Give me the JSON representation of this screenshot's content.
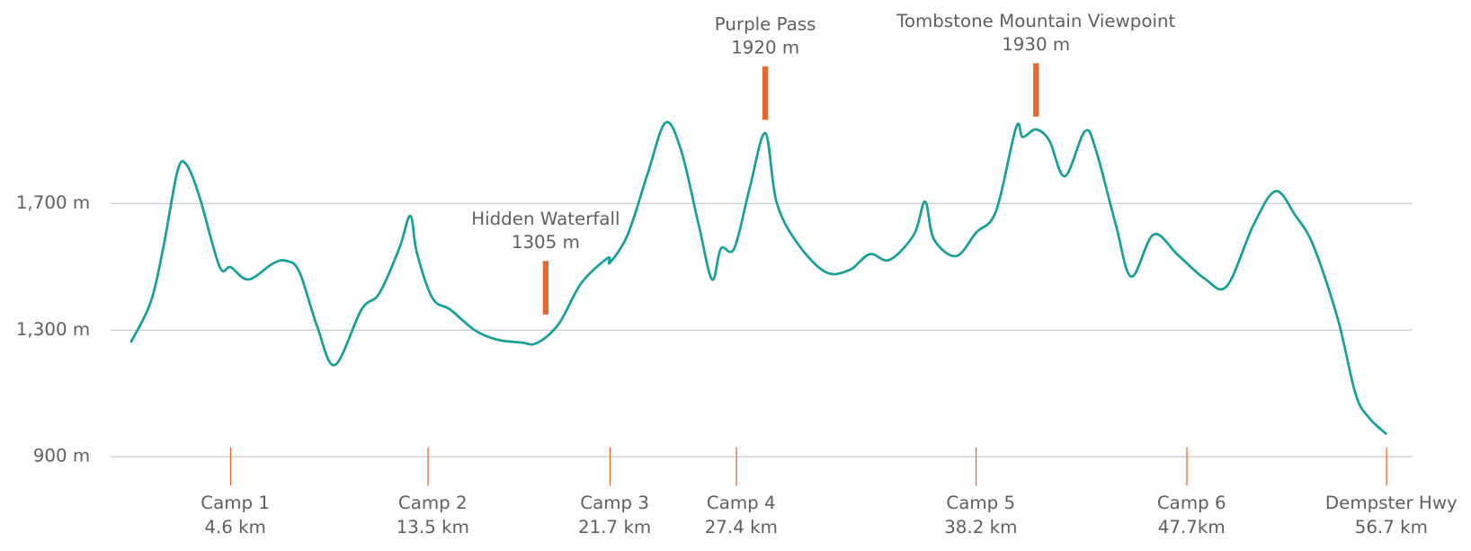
{
  "chart_data": {
    "type": "line",
    "x": [
      0.1,
      1.0,
      1.6,
      2.2,
      2.6,
      3.2,
      4.1,
      4.6,
      5.4,
      6.5,
      7.1,
      7.7,
      8.5,
      9.3,
      10.5,
      11.3,
      12.2,
      12.7,
      13.0,
      13.7,
      14.5,
      15.6,
      16.6,
      17.7,
      18.4,
      19.4,
      20.4,
      21.6,
      21.7,
      22.5,
      23.4,
      24.2,
      24.9,
      25.7,
      26.3,
      26.7,
      27.3,
      28.0,
      28.7,
      29.2,
      30.1,
      31.4,
      32.5,
      33.4,
      34.3,
      35.4,
      35.9,
      36.3,
      37.3,
      38.2,
      39.1,
      40.0,
      40.3,
      40.9,
      41.5,
      42.2,
      43.1,
      43.6,
      44.5,
      45.2,
      46.2,
      47.3,
      48.5,
      49.5,
      50.7,
      51.7,
      52.6,
      53.4,
      54.5,
      55.3,
      55.9,
      56.7
    ],
    "series": [
      {
        "color": "#17a097",
        "values": [
          1261,
          1389,
          1573,
          1801,
          1824,
          1721,
          1501,
          1499,
          1460,
          1510,
          1519,
          1484,
          1312,
          1190,
          1365,
          1416,
          1558,
          1661,
          1543,
          1401,
          1365,
          1300,
          1270,
          1261,
          1259,
          1321,
          1448,
          1528,
          1513,
          1602,
          1795,
          1955,
          1869,
          1632,
          1460,
          1558,
          1558,
          1750,
          1922,
          1706,
          1579,
          1484,
          1490,
          1540,
          1522,
          1602,
          1706,
          1587,
          1534,
          1608,
          1676,
          1940,
          1910,
          1934,
          1899,
          1786,
          1928,
          1869,
          1632,
          1469,
          1602,
          1537,
          1463,
          1439,
          1632,
          1739,
          1661,
          1567,
          1336,
          1099,
          1024,
          971
        ]
      }
    ],
    "xlim": [
      0,
      57
    ],
    "ylim": [
      900,
      2000
    ],
    "yticks": [
      {
        "value": 900,
        "label": "900 m"
      },
      {
        "value": 1300,
        "label": "1,300 m"
      },
      {
        "value": 1700,
        "label": "1,700 m"
      }
    ],
    "grid": true,
    "marker_color": "#e8672a",
    "camps": [
      {
        "label": "Camp 1",
        "x": 4.6,
        "x_label": "4.6 km"
      },
      {
        "label": "Camp 2",
        "x": 13.5,
        "x_label": "13.5 km"
      },
      {
        "label": "Camp 3",
        "x": 21.7,
        "x_label": "21.7 km"
      },
      {
        "label": "Camp 4",
        "x": 27.4,
        "x_label": "27.4 km"
      },
      {
        "label": "Camp 5",
        "x": 38.2,
        "x_label": "38.2 km"
      },
      {
        "label": "Camp 6",
        "x": 47.7,
        "x_label": "47.7km"
      },
      {
        "label": "Dempster Hwy",
        "x": 56.7,
        "x_label": "56.7 km"
      }
    ],
    "annotations": [
      {
        "text": "Hidden Waterfall",
        "x": 18.8,
        "y": 1305,
        "y_label": "1305 m"
      },
      {
        "text": "Purple Pass",
        "x": 28.7,
        "y": 1920,
        "y_label": "1920 m"
      },
      {
        "text": "Tombstone Mountain Viewpoint",
        "x": 40.9,
        "y": 1930,
        "y_label": "1930 m"
      }
    ]
  }
}
